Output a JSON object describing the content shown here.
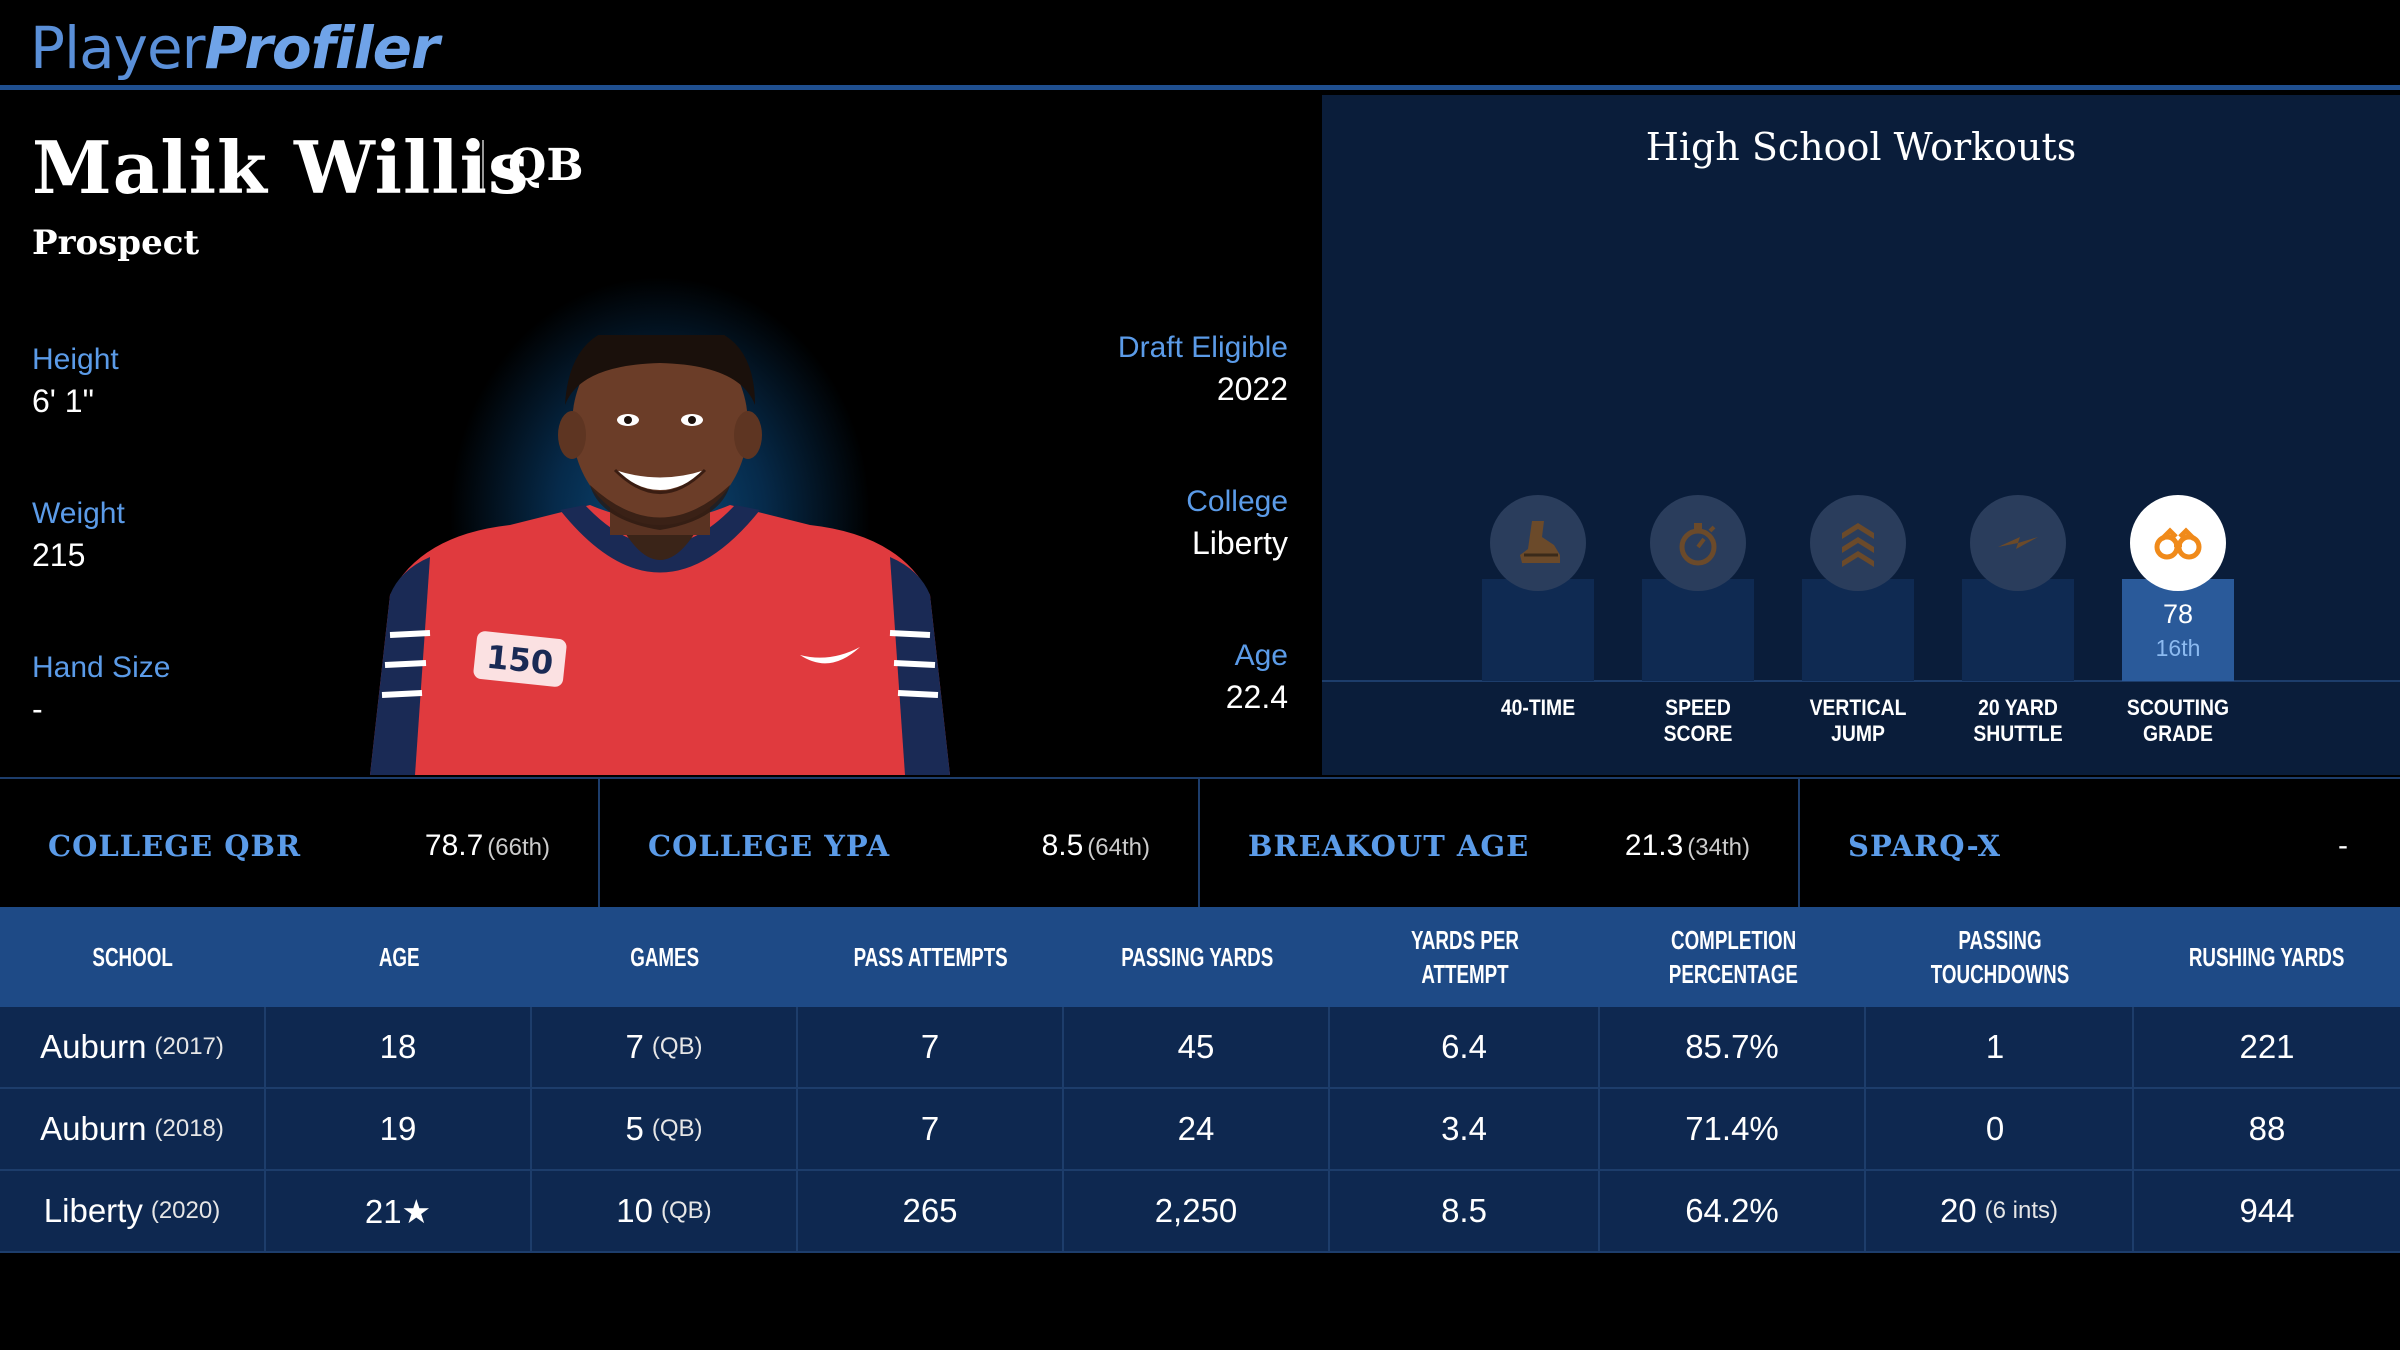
{
  "brand": {
    "part1": "Player",
    "part2": "Profiler"
  },
  "player": {
    "name": "Malik Willis",
    "position": "QB",
    "status": "Prospect"
  },
  "left_stats": [
    {
      "label": "Height",
      "value": "6' 1\""
    },
    {
      "label": "Weight",
      "value": "215"
    },
    {
      "label": "Hand Size",
      "value": "-"
    }
  ],
  "right_stats": [
    {
      "label": "Draft Eligible",
      "value": "2022"
    },
    {
      "label": "College",
      "value": "Liberty"
    },
    {
      "label": "Age",
      "value": "22.4"
    }
  ],
  "jersey_patch": "150",
  "workouts": {
    "title": "High School Workouts",
    "items": [
      {
        "label_line1": "40-TIME",
        "label_line2": "",
        "icon": "shoe-icon",
        "value": "",
        "rank": "",
        "active": false
      },
      {
        "label_line1": "SPEED",
        "label_line2": "SCORE",
        "icon": "stopwatch-icon",
        "value": "",
        "rank": "",
        "active": false
      },
      {
        "label_line1": "VERTICAL",
        "label_line2": "JUMP",
        "icon": "chevrons-up-icon",
        "value": "",
        "rank": "",
        "active": false
      },
      {
        "label_line1": "20 YARD",
        "label_line2": "SHUTTLE",
        "icon": "lightning-icon",
        "value": "",
        "rank": "",
        "active": false
      },
      {
        "label_line1": "SCOUTING",
        "label_line2": "GRADE",
        "icon": "binoculars-icon",
        "value": "78",
        "rank": "16th",
        "active": true
      }
    ]
  },
  "metrics": [
    {
      "label": "COLLEGE QBR",
      "value": "78.7",
      "rank": "(66th)"
    },
    {
      "label": "COLLEGE YPA",
      "value": "8.5",
      "rank": "(64th)"
    },
    {
      "label": "BREAKOUT AGE",
      "value": "21.3",
      "rank": "(34th)"
    },
    {
      "label": "SPARQ-X",
      "value": "-",
      "rank": ""
    }
  ],
  "table": {
    "headers": [
      [
        "SCHOOL",
        ""
      ],
      [
        "AGE",
        ""
      ],
      [
        "GAMES",
        ""
      ],
      [
        "PASS ATTEMPTS",
        ""
      ],
      [
        "PASSING YARDS",
        ""
      ],
      [
        "YARDS PER ATTEMPT",
        ""
      ],
      [
        "COMPLETION",
        "PERCENTAGE"
      ],
      [
        "PASSING TOUCHDOWNS",
        ""
      ],
      [
        "RUSHING YARDS",
        ""
      ]
    ],
    "rows": [
      {
        "school": "Auburn",
        "year": "(2017)",
        "age": "18",
        "games": "7",
        "games_pos": "(QB)",
        "attempts": "7",
        "yards": "45",
        "ypa": "6.4",
        "comp": "85.7%",
        "td": "1",
        "td_note": "",
        "rush": "221"
      },
      {
        "school": "Auburn",
        "year": "(2018)",
        "age": "19",
        "games": "5",
        "games_pos": "(QB)",
        "attempts": "7",
        "yards": "24",
        "ypa": "3.4",
        "comp": "71.4%",
        "td": "0",
        "td_note": "",
        "rush": "88"
      },
      {
        "school": "Liberty",
        "year": "(2020)",
        "age": "21★",
        "games": "10",
        "games_pos": "(QB)",
        "attempts": "265",
        "yards": "2,250",
        "ypa": "8.5",
        "comp": "64.2%",
        "td": "20",
        "td_note": "(6 ints)",
        "rush": "944"
      }
    ]
  },
  "colors": {
    "accent": "#5b9be8",
    "header_blue": "#1e4a86",
    "row_bg": "#0e2850",
    "jersey_red": "#e03a3e"
  }
}
